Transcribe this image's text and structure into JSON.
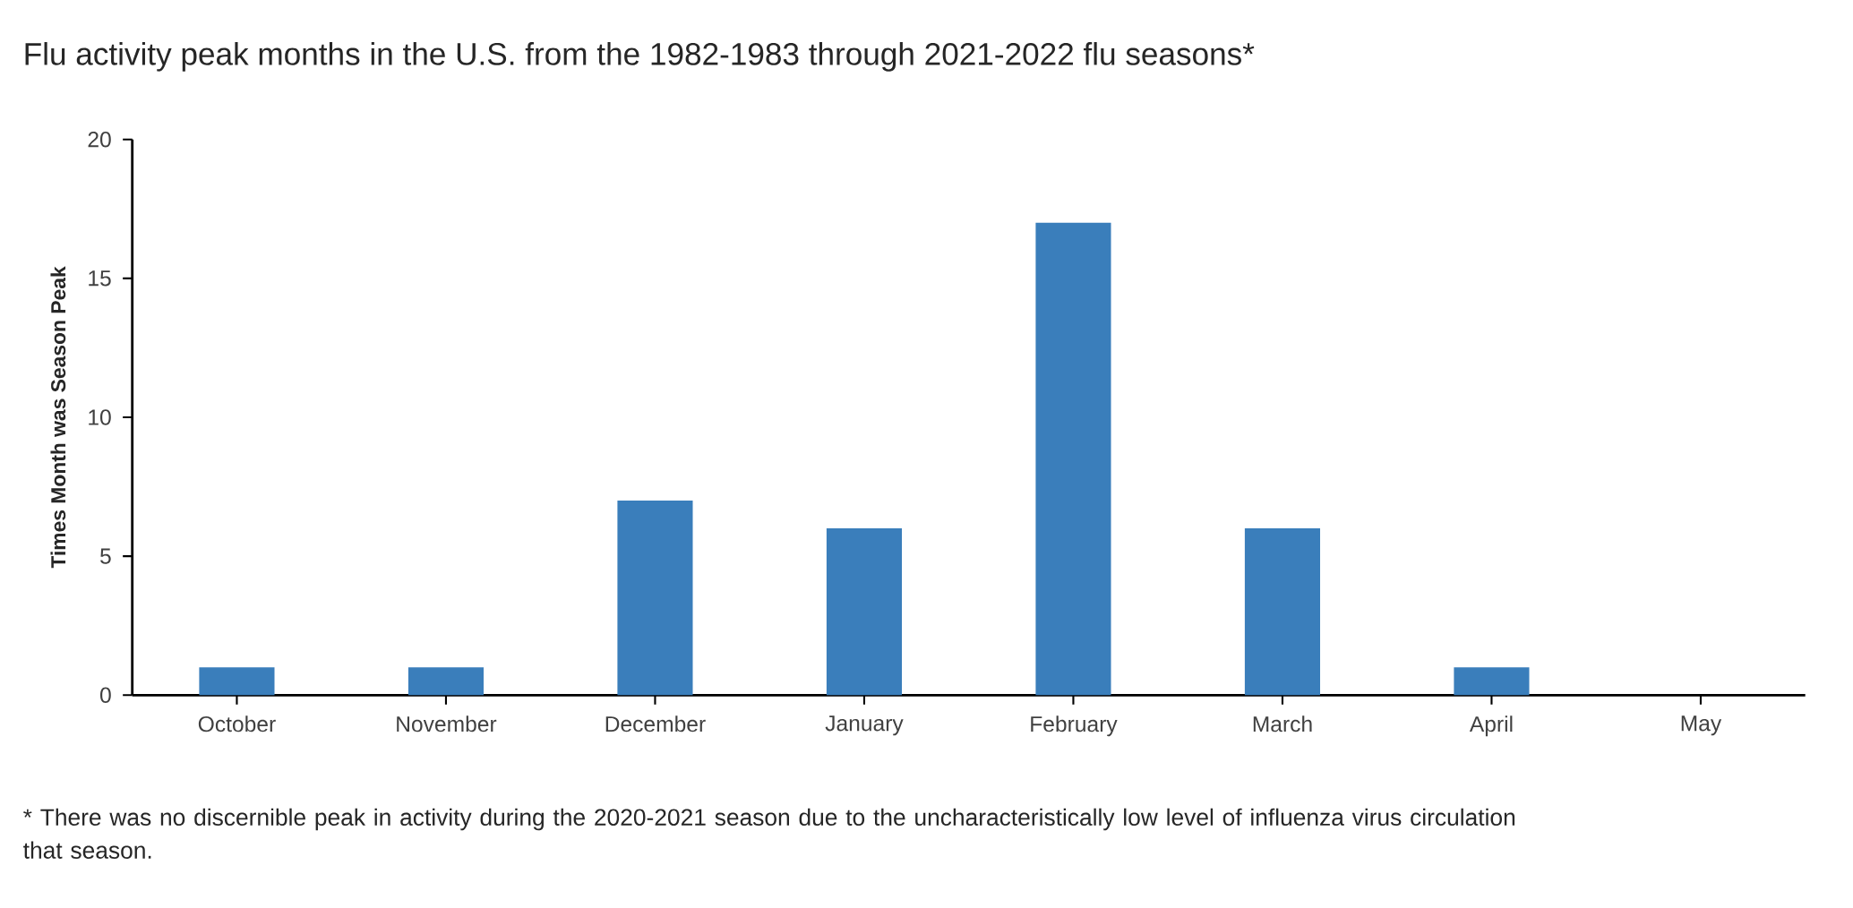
{
  "chart_data": {
    "type": "bar",
    "title": "Flu activity peak months in the U.S. from the 1982-1983 through 2021-2022 flu seasons*",
    "ylabel": "Times Month was Season Peak",
    "categories": [
      "October",
      "November",
      "December",
      "January",
      "February",
      "March",
      "April",
      "May"
    ],
    "values": [
      1,
      1,
      7,
      6,
      17,
      6,
      1,
      0
    ],
    "color": "#3a7ebb",
    "ylim": [
      0,
      20
    ],
    "yticks": [
      0,
      5,
      10,
      15,
      20
    ],
    "annotations": [
      "* There was no discernible peak in activity during the 2020-2021 season due to the uncharacteristically low level of influenza virus circulation that season."
    ]
  }
}
